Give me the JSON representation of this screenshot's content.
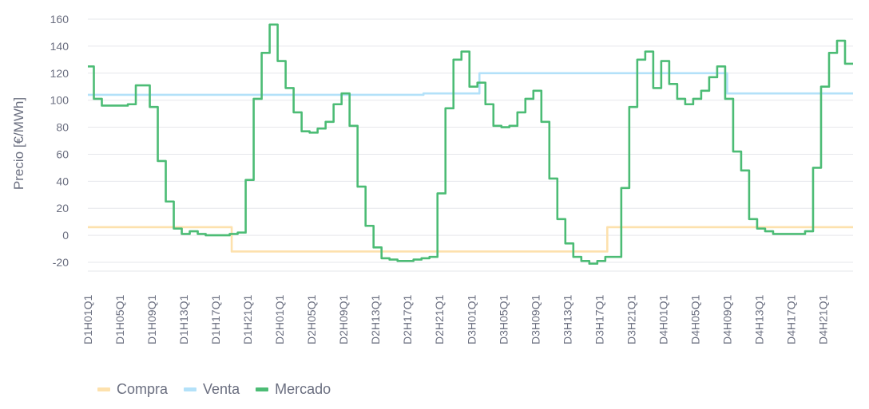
{
  "colors": {
    "compra": "#fde1ad",
    "venta": "#b3e1f9",
    "mercado": "#4cbc75",
    "grid": "#e6e7eb",
    "text": "#6b6f80"
  },
  "chart_data": {
    "type": "line",
    "ylabel": "Precio [€/MWh]",
    "xlabel": "",
    "ylim": [
      -25,
      165
    ],
    "yticks": [
      -20,
      0,
      20,
      40,
      60,
      80,
      100,
      120,
      140,
      160
    ],
    "x_count": 384,
    "x_tick_labels": [
      "D1H01Q1",
      "D1H05Q1",
      "D1H09Q1",
      "D1H13Q1",
      "D1H17Q1",
      "D1H21Q1",
      "D2H01Q1",
      "D2H05Q1",
      "D2H09Q1",
      "D2H13Q1",
      "D2H17Q1",
      "D2H21Q1",
      "D3H01Q1",
      "D3H05Q1",
      "D3H09Q1",
      "D3H13Q1",
      "D3H17Q1",
      "D3H21Q1",
      "D4H01Q1",
      "D4H05Q1",
      "D4H09Q1",
      "D4H13Q1",
      "D4H17Q1",
      "D4H21Q1"
    ],
    "x_tick_positions": [
      0,
      16,
      32,
      48,
      64,
      80,
      96,
      112,
      128,
      144,
      160,
      176,
      192,
      208,
      224,
      240,
      256,
      272,
      288,
      304,
      320,
      336,
      352,
      368
    ],
    "legend_position": "bottom-left",
    "grid": true,
    "series": [
      {
        "name": "Compra",
        "color": "#fde1ad",
        "steps": [
          [
            0,
            6
          ],
          [
            72,
            -12
          ],
          [
            168,
            -12
          ],
          [
            260,
            6
          ],
          [
            383,
            6
          ]
        ]
      },
      {
        "name": "Venta",
        "color": "#b3e1f9",
        "steps": [
          [
            0,
            104
          ],
          [
            72,
            104
          ],
          [
            168,
            105
          ],
          [
            196,
            120
          ],
          [
            320,
            105
          ],
          [
            383,
            105
          ]
        ]
      },
      {
        "name": "Mercado",
        "color": "#4cbc75",
        "steps": [
          [
            0,
            125
          ],
          [
            3,
            101
          ],
          [
            7,
            96
          ],
          [
            20,
            97
          ],
          [
            24,
            111
          ],
          [
            31,
            95
          ],
          [
            35,
            55
          ],
          [
            39,
            25
          ],
          [
            43,
            5
          ],
          [
            47,
            1
          ],
          [
            51,
            3
          ],
          [
            55,
            1
          ],
          [
            59,
            0
          ],
          [
            71,
            1
          ],
          [
            75,
            2
          ],
          [
            79,
            41
          ],
          [
            83,
            101
          ],
          [
            87,
            135
          ],
          [
            91,
            156
          ],
          [
            95,
            129
          ],
          [
            99,
            109
          ],
          [
            103,
            91
          ],
          [
            107,
            77
          ],
          [
            111,
            76
          ],
          [
            115,
            79
          ],
          [
            119,
            84
          ],
          [
            123,
            97
          ],
          [
            127,
            105
          ],
          [
            131,
            81
          ],
          [
            135,
            36
          ],
          [
            139,
            7
          ],
          [
            143,
            -9
          ],
          [
            147,
            -17
          ],
          [
            151,
            -18
          ],
          [
            155,
            -19
          ],
          [
            163,
            -18
          ],
          [
            167,
            -17
          ],
          [
            171,
            -16
          ],
          [
            175,
            31
          ],
          [
            179,
            94
          ],
          [
            183,
            130
          ],
          [
            187,
            136
          ],
          [
            191,
            110
          ],
          [
            195,
            113
          ],
          [
            199,
            97
          ],
          [
            203,
            81
          ],
          [
            207,
            80
          ],
          [
            211,
            81
          ],
          [
            215,
            91
          ],
          [
            219,
            101
          ],
          [
            223,
            107
          ],
          [
            227,
            84
          ],
          [
            231,
            42
          ],
          [
            235,
            12
          ],
          [
            239,
            -6
          ],
          [
            243,
            -16
          ],
          [
            247,
            -19
          ],
          [
            251,
            -21
          ],
          [
            255,
            -19
          ],
          [
            259,
            -16
          ],
          [
            267,
            35
          ],
          [
            271,
            95
          ],
          [
            275,
            130
          ],
          [
            279,
            136
          ],
          [
            283,
            109
          ],
          [
            287,
            129
          ],
          [
            291,
            112
          ],
          [
            295,
            101
          ],
          [
            299,
            97
          ],
          [
            303,
            101
          ],
          [
            307,
            107
          ],
          [
            311,
            117
          ],
          [
            315,
            125
          ],
          [
            319,
            101
          ],
          [
            323,
            62
          ],
          [
            327,
            48
          ],
          [
            331,
            12
          ],
          [
            335,
            5
          ],
          [
            339,
            3
          ],
          [
            343,
            1
          ],
          [
            351,
            1
          ],
          [
            359,
            3
          ],
          [
            363,
            50
          ],
          [
            367,
            110
          ],
          [
            371,
            135
          ],
          [
            375,
            144
          ],
          [
            379,
            127
          ],
          [
            383,
            127
          ]
        ]
      }
    ]
  }
}
